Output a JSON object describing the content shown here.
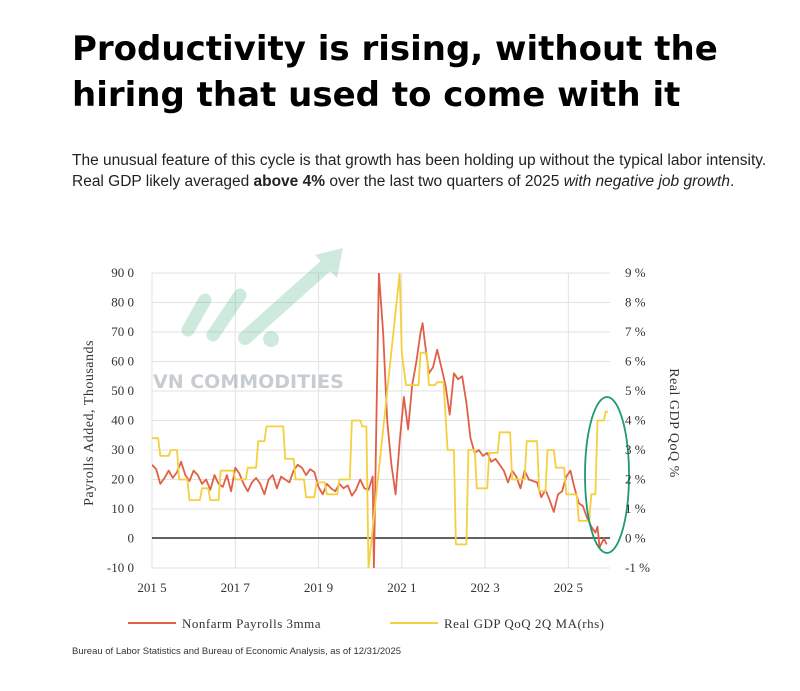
{
  "headline": "Productivity is rising, without the hiring that used to come with it",
  "intro": {
    "part1": "The unusual feature of this cycle is that growth has been holding up without the typical labor intensity. Real GDP likely averaged ",
    "bold": "above 4%",
    "part2": " over the last two quarters of 2025 ",
    "italic": "with negative job growth",
    "end": "."
  },
  "watermark": "VN COMMODITIES",
  "source": "Bureau of Labor Statistics and Bureau of Economic Analysis, as of 12/31/2025",
  "colors": {
    "payrolls": "#e06047",
    "gdp": "#f4d03f",
    "zero_line": "#333333",
    "highlight": "#1e9a6e",
    "grid": "#e2e2e2"
  },
  "chart_data": {
    "type": "line",
    "xlabel": "",
    "ylabel": "Payrolls Added, Thousands",
    "y2label": "Real GDP QoQ %",
    "x_ticks": [
      "201 5",
      "201 7",
      "201 9",
      "202 1",
      "202 3",
      "202 5"
    ],
    "y_ticks": [
      "90 0",
      "80 0",
      "70 0",
      "60 0",
      "50 0",
      "40 0",
      "30 0",
      "20 0",
      "10 0",
      "0",
      "-10 0"
    ],
    "y2_ticks": [
      "9 %",
      "8 %",
      "7 %",
      "6 %",
      "5 %",
      "4 %",
      "3 %",
      "2 %",
      "1 %",
      "0 %",
      "-1 %"
    ],
    "xlim": [
      2015,
      2026
    ],
    "ylim": [
      -100,
      900
    ],
    "y2lim": [
      -1,
      9
    ],
    "grid": true,
    "legend": "bottom",
    "series": [
      {
        "name": "Nonfarm Payrolls 3mma",
        "axis": "left",
        "points": [
          [
            2015.0,
            250
          ],
          [
            2015.1,
            235
          ],
          [
            2015.2,
            185
          ],
          [
            2015.3,
            205
          ],
          [
            2015.4,
            230
          ],
          [
            2015.5,
            205
          ],
          [
            2015.6,
            225
          ],
          [
            2015.7,
            260
          ],
          [
            2015.8,
            215
          ],
          [
            2015.9,
            195
          ],
          [
            2016.0,
            230
          ],
          [
            2016.1,
            215
          ],
          [
            2016.2,
            185
          ],
          [
            2016.3,
            200
          ],
          [
            2016.4,
            165
          ],
          [
            2016.5,
            215
          ],
          [
            2016.6,
            185
          ],
          [
            2016.7,
            175
          ],
          [
            2016.8,
            215
          ],
          [
            2016.9,
            160
          ],
          [
            2017.0,
            240
          ],
          [
            2017.1,
            220
          ],
          [
            2017.2,
            185
          ],
          [
            2017.3,
            160
          ],
          [
            2017.4,
            190
          ],
          [
            2017.5,
            205
          ],
          [
            2017.6,
            185
          ],
          [
            2017.7,
            150
          ],
          [
            2017.8,
            200
          ],
          [
            2017.9,
            215
          ],
          [
            2018.0,
            170
          ],
          [
            2018.1,
            210
          ],
          [
            2018.2,
            200
          ],
          [
            2018.3,
            190
          ],
          [
            2018.4,
            230
          ],
          [
            2018.5,
            250
          ],
          [
            2018.6,
            240
          ],
          [
            2018.7,
            215
          ],
          [
            2018.8,
            235
          ],
          [
            2018.9,
            225
          ],
          [
            2019.0,
            175
          ],
          [
            2019.1,
            150
          ],
          [
            2019.2,
            185
          ],
          [
            2019.3,
            170
          ],
          [
            2019.4,
            160
          ],
          [
            2019.5,
            185
          ],
          [
            2019.6,
            170
          ],
          [
            2019.7,
            180
          ],
          [
            2019.8,
            145
          ],
          [
            2019.9,
            165
          ],
          [
            2020.0,
            200
          ],
          [
            2020.1,
            170
          ],
          [
            2020.2,
            165
          ],
          [
            2020.3,
            210
          ],
          [
            2020.33,
            -100
          ],
          [
            2020.45,
            900
          ],
          [
            2020.55,
            700
          ],
          [
            2020.65,
            400
          ],
          [
            2020.75,
            250
          ],
          [
            2020.85,
            150
          ],
          [
            2020.95,
            330
          ],
          [
            2021.05,
            480
          ],
          [
            2021.15,
            370
          ],
          [
            2021.25,
            520
          ],
          [
            2021.35,
            600
          ],
          [
            2021.45,
            700
          ],
          [
            2021.5,
            730
          ],
          [
            2021.55,
            670
          ],
          [
            2021.65,
            560
          ],
          [
            2021.75,
            580
          ],
          [
            2021.85,
            640
          ],
          [
            2021.95,
            580
          ],
          [
            2022.05,
            520
          ],
          [
            2022.15,
            420
          ],
          [
            2022.25,
            560
          ],
          [
            2022.35,
            540
          ],
          [
            2022.45,
            550
          ],
          [
            2022.55,
            460
          ],
          [
            2022.65,
            340
          ],
          [
            2022.75,
            290
          ],
          [
            2022.85,
            300
          ],
          [
            2022.95,
            280
          ],
          [
            2023.05,
            290
          ],
          [
            2023.15,
            260
          ],
          [
            2023.25,
            270
          ],
          [
            2023.35,
            250
          ],
          [
            2023.45,
            230
          ],
          [
            2023.55,
            190
          ],
          [
            2023.65,
            230
          ],
          [
            2023.75,
            210
          ],
          [
            2023.85,
            170
          ],
          [
            2023.95,
            230
          ],
          [
            2024.05,
            200
          ],
          [
            2024.15,
            195
          ],
          [
            2024.25,
            190
          ],
          [
            2024.35,
            140
          ],
          [
            2024.45,
            165
          ],
          [
            2024.55,
            130
          ],
          [
            2024.65,
            90
          ],
          [
            2024.75,
            150
          ],
          [
            2024.85,
            160
          ],
          [
            2024.95,
            210
          ],
          [
            2025.05,
            230
          ],
          [
            2025.15,
            170
          ],
          [
            2025.25,
            120
          ],
          [
            2025.35,
            110
          ],
          [
            2025.45,
            70
          ],
          [
            2025.55,
            40
          ],
          [
            2025.65,
            20
          ],
          [
            2025.7,
            40
          ],
          [
            2025.75,
            -30
          ],
          [
            2025.85,
            0
          ],
          [
            2025.92,
            -20
          ]
        ]
      },
      {
        "name": "Real GDP QoQ 2Q MA(rhs)",
        "axis": "right",
        "points": [
          [
            2015.0,
            3.4
          ],
          [
            2015.15,
            3.4
          ],
          [
            2015.2,
            2.8
          ],
          [
            2015.4,
            2.8
          ],
          [
            2015.45,
            3.0
          ],
          [
            2015.6,
            3.0
          ],
          [
            2015.65,
            2.0
          ],
          [
            2015.85,
            2.0
          ],
          [
            2015.9,
            1.3
          ],
          [
            2016.15,
            1.3
          ],
          [
            2016.2,
            1.7
          ],
          [
            2016.35,
            1.7
          ],
          [
            2016.4,
            1.3
          ],
          [
            2016.6,
            1.3
          ],
          [
            2016.65,
            2.3
          ],
          [
            2016.95,
            2.3
          ],
          [
            2017.0,
            2.0
          ],
          [
            2017.25,
            2.0
          ],
          [
            2017.3,
            2.4
          ],
          [
            2017.5,
            2.4
          ],
          [
            2017.55,
            3.3
          ],
          [
            2017.7,
            3.3
          ],
          [
            2017.75,
            3.8
          ],
          [
            2018.15,
            3.8
          ],
          [
            2018.2,
            2.7
          ],
          [
            2018.4,
            2.7
          ],
          [
            2018.45,
            2.0
          ],
          [
            2018.65,
            2.0
          ],
          [
            2018.7,
            1.4
          ],
          [
            2018.9,
            1.4
          ],
          [
            2018.95,
            1.9
          ],
          [
            2019.15,
            1.9
          ],
          [
            2019.2,
            1.5
          ],
          [
            2019.45,
            1.5
          ],
          [
            2019.5,
            2.0
          ],
          [
            2019.75,
            2.0
          ],
          [
            2019.8,
            4.0
          ],
          [
            2020.0,
            4.0
          ],
          [
            2020.05,
            3.8
          ],
          [
            2020.15,
            3.8
          ],
          [
            2020.2,
            -1.0
          ],
          [
            2020.95,
            9.0
          ],
          [
            2021.0,
            6.3
          ],
          [
            2021.1,
            5.2
          ],
          [
            2021.4,
            5.2
          ],
          [
            2021.45,
            6.3
          ],
          [
            2021.6,
            6.3
          ],
          [
            2021.65,
            5.2
          ],
          [
            2021.8,
            5.2
          ],
          [
            2021.85,
            5.3
          ],
          [
            2022.0,
            5.3
          ],
          [
            2022.1,
            3.0
          ],
          [
            2022.25,
            3.0
          ],
          [
            2022.3,
            -0.2
          ],
          [
            2022.55,
            -0.2
          ],
          [
            2022.6,
            3.0
          ],
          [
            2022.75,
            3.0
          ],
          [
            2022.8,
            1.7
          ],
          [
            2023.05,
            1.7
          ],
          [
            2023.1,
            2.9
          ],
          [
            2023.3,
            2.9
          ],
          [
            2023.35,
            3.6
          ],
          [
            2023.6,
            3.6
          ],
          [
            2023.65,
            2.0
          ],
          [
            2023.95,
            2.0
          ],
          [
            2024.0,
            3.3
          ],
          [
            2024.25,
            3.3
          ],
          [
            2024.3,
            1.6
          ],
          [
            2024.45,
            1.6
          ],
          [
            2024.5,
            3.0
          ],
          [
            2024.65,
            3.0
          ],
          [
            2024.7,
            2.4
          ],
          [
            2024.9,
            2.4
          ],
          [
            2024.95,
            1.5
          ],
          [
            2025.2,
            1.5
          ],
          [
            2025.25,
            0.6
          ],
          [
            2025.5,
            0.6
          ],
          [
            2025.55,
            1.5
          ],
          [
            2025.65,
            1.5
          ],
          [
            2025.7,
            4.0
          ],
          [
            2025.85,
            4.0
          ],
          [
            2025.9,
            4.3
          ],
          [
            2025.95,
            4.3
          ]
        ]
      }
    ]
  }
}
